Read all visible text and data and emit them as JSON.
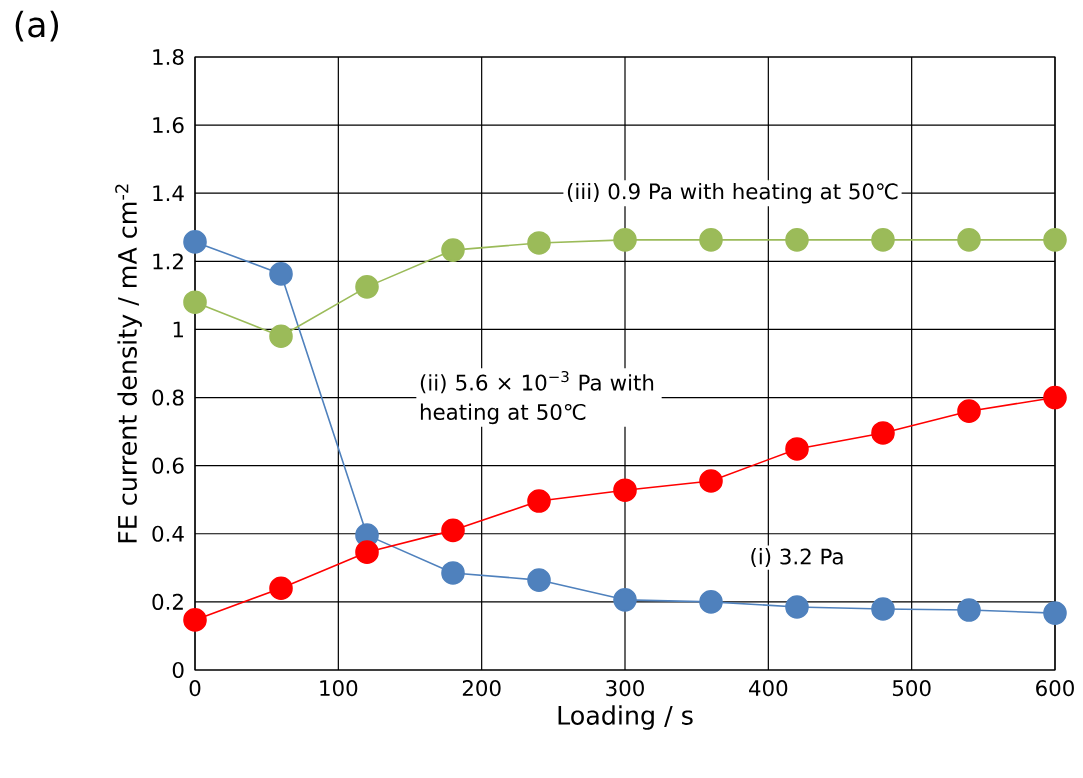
{
  "chart_data": {
    "type": "line",
    "title": "(a)",
    "xlabel": "Loading / s",
    "ylabel": "FE current density / mA cm$^{-2}$",
    "x": [
      0,
      60,
      120,
      180,
      240,
      300,
      360,
      420,
      480,
      540,
      600
    ],
    "series": [
      {
        "name": "(i) 3.2 Pa",
        "color": "#4f81bd",
        "values": [
          1.257,
          1.163,
          0.396,
          0.285,
          0.264,
          0.206,
          0.2,
          0.185,
          0.179,
          0.176,
          0.167
        ]
      },
      {
        "name": "(ii) 5.6 × 10$^{−3}$ Pa with heating at 50℃",
        "color": "#ff0000",
        "values": [
          0.147,
          0.24,
          0.346,
          0.41,
          0.496,
          0.528,
          0.555,
          0.649,
          0.696,
          0.76,
          0.8
        ]
      },
      {
        "name": "(iii) 0.9 Pa with heating at 50℃",
        "color": "#9bbb59",
        "values": [
          1.08,
          0.98,
          1.125,
          1.233,
          1.254,
          1.263,
          1.263,
          1.263,
          1.263,
          1.263,
          1.263
        ]
      }
    ],
    "xlim": [
      0,
      600
    ],
    "xticks": [
      0,
      100,
      200,
      300,
      400,
      500,
      600
    ],
    "ylim": [
      0,
      1.8
    ],
    "yticks": [
      0,
      0.2,
      0.4,
      0.6,
      0.8,
      1,
      1.2,
      1.4,
      1.6,
      1.8
    ],
    "grid": true,
    "marker": "circle",
    "line_style": "solid"
  }
}
